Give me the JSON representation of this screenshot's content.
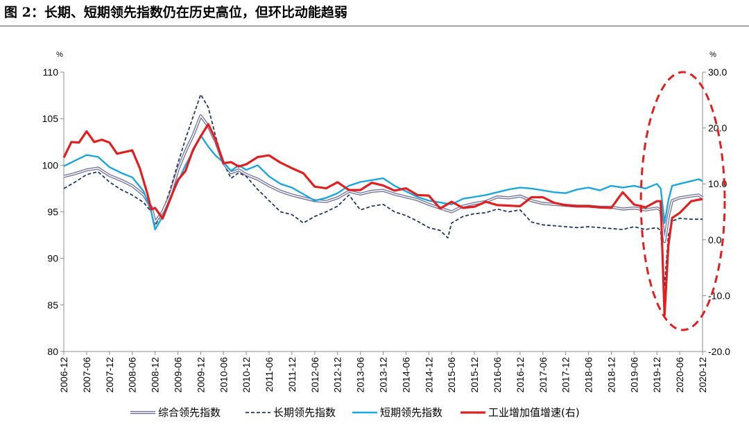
{
  "figure_title": "图 2：长期、短期领先指数仍在历史高位，但环比动能趋弱",
  "chart_data": {
    "type": "line",
    "title": "",
    "grid": false,
    "legend_position": "bottom",
    "y_left": {
      "unit_label": "%",
      "range": [
        80,
        110
      ],
      "ticks": [
        "80",
        "85",
        "90",
        "95",
        "100",
        "105",
        "110"
      ]
    },
    "y_right": {
      "unit_label": "%",
      "range": [
        -20,
        30
      ],
      "ticks": [
        "-20.0",
        "-10.0",
        "0.0",
        "10.0",
        "20.0",
        "30.0"
      ]
    },
    "x_range": [
      "2006-12",
      "2020-12"
    ],
    "x_tick_labels": [
      "2006-12",
      "2007-06",
      "2007-12",
      "2008-06",
      "2008-12",
      "2009-06",
      "2009-12",
      "2010-06",
      "2010-12",
      "2011-06",
      "2011-12",
      "2012-06",
      "2012-12",
      "2013-06",
      "2013-12",
      "2014-06",
      "2014-12",
      "2015-06",
      "2015-12",
      "2016-06",
      "2016-12",
      "2017-06",
      "2017-12",
      "2018-06",
      "2018-12",
      "2019-06",
      "2019-12",
      "2020-06",
      "2020-12"
    ],
    "highlight": {
      "shape": "dashed-ellipse",
      "color": "#e31e1e",
      "covers": [
        "2019-10",
        "2020-12"
      ]
    },
    "series": [
      {
        "name": "综合领先指数",
        "axis": "left",
        "color": "#6e6e9e",
        "style": "double",
        "points": [
          [
            "2006-12",
            98.8
          ],
          [
            "2007-03",
            99.1
          ],
          [
            "2007-06",
            99.5
          ],
          [
            "2007-09",
            99.7
          ],
          [
            "2007-12",
            98.9
          ],
          [
            "2008-03",
            98.4
          ],
          [
            "2008-06",
            97.8
          ],
          [
            "2008-09",
            96.8
          ],
          [
            "2008-11",
            95.5
          ],
          [
            "2008-12",
            93.9
          ],
          [
            "2009-02",
            95.0
          ],
          [
            "2009-04",
            96.8
          ],
          [
            "2009-06",
            99.5
          ],
          [
            "2009-08",
            101.5
          ],
          [
            "2009-10",
            103.2
          ],
          [
            "2009-12",
            105.3
          ],
          [
            "2010-02",
            104.2
          ],
          [
            "2010-04",
            102.5
          ],
          [
            "2010-06",
            100.2
          ],
          [
            "2010-08",
            99.2
          ],
          [
            "2010-10",
            99.5
          ],
          [
            "2010-12",
            99.0
          ],
          [
            "2011-03",
            98.5
          ],
          [
            "2011-06",
            97.8
          ],
          [
            "2011-09",
            97.2
          ],
          [
            "2011-12",
            96.8
          ],
          [
            "2012-03",
            96.5
          ],
          [
            "2012-06",
            96.2
          ],
          [
            "2012-09",
            96.1
          ],
          [
            "2012-12",
            96.5
          ],
          [
            "2013-03",
            97.2
          ],
          [
            "2013-06",
            96.9
          ],
          [
            "2013-09",
            97.2
          ],
          [
            "2013-12",
            97.3
          ],
          [
            "2014-03",
            96.9
          ],
          [
            "2014-06",
            96.6
          ],
          [
            "2014-09",
            96.3
          ],
          [
            "2014-12",
            95.8
          ],
          [
            "2015-03",
            95.4
          ],
          [
            "2015-06",
            95.0
          ],
          [
            "2015-09",
            95.6
          ],
          [
            "2015-12",
            95.9
          ],
          [
            "2016-03",
            96.1
          ],
          [
            "2016-06",
            96.6
          ],
          [
            "2016-09",
            96.5
          ],
          [
            "2016-12",
            96.7
          ],
          [
            "2017-03",
            96.2
          ],
          [
            "2017-06",
            95.9
          ],
          [
            "2017-09",
            95.8
          ],
          [
            "2017-12",
            95.7
          ],
          [
            "2018-03",
            95.6
          ],
          [
            "2018-06",
            95.6
          ],
          [
            "2018-09",
            95.5
          ],
          [
            "2018-12",
            95.5
          ],
          [
            "2019-03",
            95.3
          ],
          [
            "2019-06",
            95.4
          ],
          [
            "2019-09",
            95.2
          ],
          [
            "2019-12",
            95.4
          ],
          [
            "2020-01",
            95.2
          ],
          [
            "2020-02",
            91.8
          ],
          [
            "2020-03",
            94.5
          ],
          [
            "2020-04",
            96.2
          ],
          [
            "2020-06",
            96.5
          ],
          [
            "2020-09",
            96.7
          ],
          [
            "2020-11",
            96.8
          ],
          [
            "2020-12",
            96.5
          ]
        ]
      },
      {
        "name": "长期领先指数",
        "axis": "left",
        "color": "#1f3864",
        "style": "dashed",
        "points": [
          [
            "2006-12",
            97.5
          ],
          [
            "2007-03",
            98.2
          ],
          [
            "2007-06",
            99.0
          ],
          [
            "2007-09",
            99.3
          ],
          [
            "2007-12",
            98.2
          ],
          [
            "2008-03",
            97.4
          ],
          [
            "2008-06",
            96.8
          ],
          [
            "2008-09",
            96.0
          ],
          [
            "2008-11",
            95.0
          ],
          [
            "2008-12",
            93.5
          ],
          [
            "2009-02",
            95.0
          ],
          [
            "2009-04",
            97.4
          ],
          [
            "2009-06",
            100.2
          ],
          [
            "2009-08",
            102.8
          ],
          [
            "2009-10",
            105.2
          ],
          [
            "2009-12",
            107.6
          ],
          [
            "2010-02",
            106.2
          ],
          [
            "2010-04",
            103.0
          ],
          [
            "2010-06",
            100.2
          ],
          [
            "2010-08",
            98.6
          ],
          [
            "2010-10",
            99.2
          ],
          [
            "2010-12",
            98.8
          ],
          [
            "2011-03",
            97.4
          ],
          [
            "2011-06",
            96.2
          ],
          [
            "2011-09",
            95.0
          ],
          [
            "2011-12",
            94.7
          ],
          [
            "2012-03",
            93.8
          ],
          [
            "2012-06",
            94.5
          ],
          [
            "2012-09",
            95.0
          ],
          [
            "2012-12",
            95.6
          ],
          [
            "2013-03",
            96.8
          ],
          [
            "2013-06",
            95.2
          ],
          [
            "2013-09",
            95.6
          ],
          [
            "2013-12",
            95.8
          ],
          [
            "2014-03",
            95.0
          ],
          [
            "2014-06",
            94.6
          ],
          [
            "2014-09",
            94.0
          ],
          [
            "2014-12",
            93.3
          ],
          [
            "2015-03",
            93.0
          ],
          [
            "2015-05",
            92.2
          ],
          [
            "2015-06",
            93.8
          ],
          [
            "2015-09",
            94.5
          ],
          [
            "2015-12",
            94.8
          ],
          [
            "2016-03",
            94.9
          ],
          [
            "2016-06",
            95.3
          ],
          [
            "2016-09",
            95.0
          ],
          [
            "2016-12",
            95.2
          ],
          [
            "2017-03",
            93.9
          ],
          [
            "2017-06",
            93.6
          ],
          [
            "2017-09",
            93.5
          ],
          [
            "2017-12",
            93.4
          ],
          [
            "2018-03",
            93.3
          ],
          [
            "2018-06",
            93.4
          ],
          [
            "2018-09",
            93.3
          ],
          [
            "2018-12",
            93.2
          ],
          [
            "2019-03",
            93.1
          ],
          [
            "2019-06",
            93.4
          ],
          [
            "2019-09",
            93.1
          ],
          [
            "2019-12",
            93.3
          ],
          [
            "2020-01",
            93.0
          ],
          [
            "2020-02",
            87.0
          ],
          [
            "2020-03",
            92.5
          ],
          [
            "2020-04",
            94.0
          ],
          [
            "2020-06",
            94.3
          ],
          [
            "2020-09",
            94.2
          ],
          [
            "2020-12",
            94.2
          ]
        ]
      },
      {
        "name": "短期领先指数",
        "axis": "left",
        "color": "#1aa7e0",
        "style": "solid",
        "points": [
          [
            "2006-12",
            99.9
          ],
          [
            "2007-03",
            100.5
          ],
          [
            "2007-06",
            101.1
          ],
          [
            "2007-09",
            100.9
          ],
          [
            "2007-12",
            99.8
          ],
          [
            "2008-03",
            99.2
          ],
          [
            "2008-06",
            98.7
          ],
          [
            "2008-09",
            97.2
          ],
          [
            "2008-11",
            95.0
          ],
          [
            "2008-12",
            93.1
          ],
          [
            "2009-02",
            94.5
          ],
          [
            "2009-04",
            96.5
          ],
          [
            "2009-06",
            98.2
          ],
          [
            "2009-08",
            100.0
          ],
          [
            "2009-10",
            101.5
          ],
          [
            "2009-12",
            103.2
          ],
          [
            "2010-02",
            102.0
          ],
          [
            "2010-04",
            101.0
          ],
          [
            "2010-06",
            100.3
          ],
          [
            "2010-08",
            99.4
          ],
          [
            "2010-10",
            100.0
          ],
          [
            "2010-12",
            99.5
          ],
          [
            "2011-03",
            100.0
          ],
          [
            "2011-06",
            98.8
          ],
          [
            "2011-09",
            98.0
          ],
          [
            "2011-12",
            97.6
          ],
          [
            "2012-03",
            96.9
          ],
          [
            "2012-06",
            96.2
          ],
          [
            "2012-09",
            96.5
          ],
          [
            "2012-12",
            97.0
          ],
          [
            "2013-03",
            97.8
          ],
          [
            "2013-06",
            98.2
          ],
          [
            "2013-09",
            98.4
          ],
          [
            "2013-12",
            98.6
          ],
          [
            "2014-03",
            97.8
          ],
          [
            "2014-06",
            97.2
          ],
          [
            "2014-09",
            96.6
          ],
          [
            "2014-12",
            96.2
          ],
          [
            "2015-03",
            96.0
          ],
          [
            "2015-06",
            95.8
          ],
          [
            "2015-09",
            96.4
          ],
          [
            "2015-12",
            96.6
          ],
          [
            "2016-03",
            96.8
          ],
          [
            "2016-06",
            97.1
          ],
          [
            "2016-09",
            97.4
          ],
          [
            "2016-12",
            97.6
          ],
          [
            "2017-03",
            97.5
          ],
          [
            "2017-06",
            97.3
          ],
          [
            "2017-09",
            97.1
          ],
          [
            "2017-12",
            97.0
          ],
          [
            "2018-03",
            97.4
          ],
          [
            "2018-06",
            97.6
          ],
          [
            "2018-09",
            97.3
          ],
          [
            "2018-12",
            97.8
          ],
          [
            "2019-03",
            97.6
          ],
          [
            "2019-06",
            97.8
          ],
          [
            "2019-09",
            97.5
          ],
          [
            "2019-12",
            98.0
          ],
          [
            "2020-01",
            97.5
          ],
          [
            "2020-02",
            93.8
          ],
          [
            "2020-03",
            96.2
          ],
          [
            "2020-04",
            97.8
          ],
          [
            "2020-06",
            98.0
          ],
          [
            "2020-09",
            98.3
          ],
          [
            "2020-11",
            98.5
          ],
          [
            "2020-12",
            98.3
          ]
        ]
      },
      {
        "name": "工业增加值增速(右)",
        "axis": "right",
        "color": "#e31e1e",
        "style": "solid-bold",
        "points": [
          [
            "2006-12",
            14.7
          ],
          [
            "2007-02",
            17.5
          ],
          [
            "2007-04",
            17.4
          ],
          [
            "2007-06",
            19.4
          ],
          [
            "2007-08",
            17.5
          ],
          [
            "2007-10",
            17.9
          ],
          [
            "2007-12",
            17.4
          ],
          [
            "2008-02",
            15.4
          ],
          [
            "2008-04",
            15.7
          ],
          [
            "2008-06",
            16.0
          ],
          [
            "2008-08",
            12.8
          ],
          [
            "2008-10",
            8.2
          ],
          [
            "2008-11",
            5.4
          ],
          [
            "2008-12",
            5.7
          ],
          [
            "2009-02",
            3.8
          ],
          [
            "2009-04",
            7.3
          ],
          [
            "2009-06",
            10.7
          ],
          [
            "2009-08",
            12.3
          ],
          [
            "2009-10",
            16.1
          ],
          [
            "2009-12",
            18.5
          ],
          [
            "2010-02",
            20.7
          ],
          [
            "2010-04",
            17.8
          ],
          [
            "2010-06",
            13.7
          ],
          [
            "2010-08",
            13.9
          ],
          [
            "2010-10",
            13.1
          ],
          [
            "2010-12",
            13.5
          ],
          [
            "2011-03",
            14.8
          ],
          [
            "2011-06",
            15.1
          ],
          [
            "2011-09",
            13.8
          ],
          [
            "2011-12",
            12.8
          ],
          [
            "2012-03",
            11.9
          ],
          [
            "2012-06",
            9.5
          ],
          [
            "2012-09",
            9.2
          ],
          [
            "2012-12",
            10.3
          ],
          [
            "2013-03",
            8.9
          ],
          [
            "2013-06",
            8.9
          ],
          [
            "2013-09",
            10.2
          ],
          [
            "2013-12",
            9.7
          ],
          [
            "2014-03",
            8.8
          ],
          [
            "2014-06",
            9.2
          ],
          [
            "2014-09",
            8.0
          ],
          [
            "2014-12",
            7.9
          ],
          [
            "2015-03",
            5.6
          ],
          [
            "2015-06",
            6.8
          ],
          [
            "2015-09",
            5.7
          ],
          [
            "2015-12",
            5.9
          ],
          [
            "2016-03",
            6.8
          ],
          [
            "2016-06",
            6.2
          ],
          [
            "2016-09",
            6.1
          ],
          [
            "2016-12",
            6.0
          ],
          [
            "2017-03",
            7.6
          ],
          [
            "2017-06",
            7.6
          ],
          [
            "2017-09",
            6.6
          ],
          [
            "2017-12",
            6.2
          ],
          [
            "2018-03",
            6.0
          ],
          [
            "2018-06",
            6.0
          ],
          [
            "2018-09",
            5.8
          ],
          [
            "2018-12",
            5.7
          ],
          [
            "2019-03",
            8.5
          ],
          [
            "2019-06",
            6.3
          ],
          [
            "2019-09",
            5.8
          ],
          [
            "2019-12",
            6.9
          ],
          [
            "2020-01",
            6.9
          ],
          [
            "2020-02",
            -13.5
          ],
          [
            "2020-03",
            -1.1
          ],
          [
            "2020-04",
            3.9
          ],
          [
            "2020-06",
            4.8
          ],
          [
            "2020-09",
            6.9
          ],
          [
            "2020-12",
            7.3
          ]
        ]
      }
    ]
  }
}
